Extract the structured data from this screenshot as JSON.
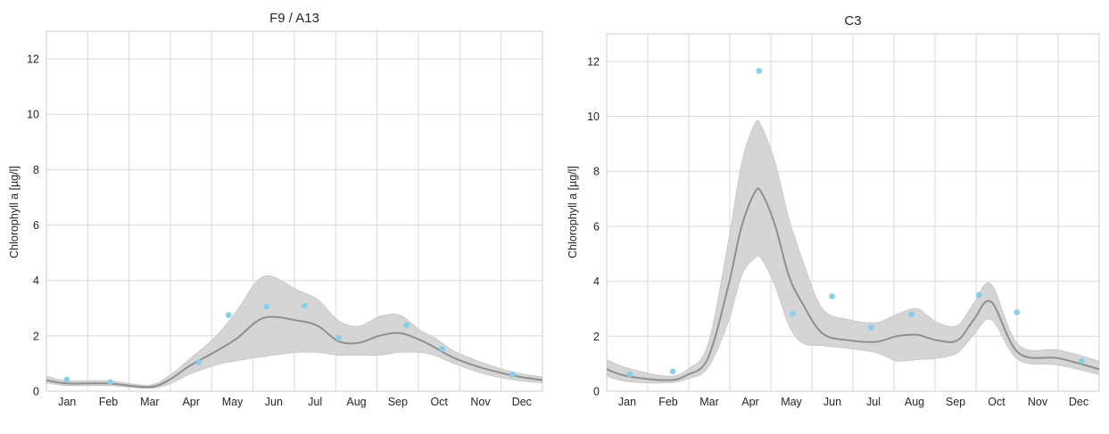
{
  "colors": {
    "grid": "#d9d9d9",
    "frame": "#cccccc",
    "band": "#d3d3d3",
    "line": "#8f8f8f",
    "points": "#87ceeb"
  },
  "chart_data": [
    {
      "type": "line",
      "title": "F9 / A13",
      "xlabel": "",
      "ylabel": "Chlorophyll a [µg/l]",
      "ylim": [
        0,
        13
      ],
      "xlim": [
        0,
        365
      ],
      "yticks": [
        0,
        2,
        4,
        6,
        8,
        10,
        12
      ],
      "categories": [
        "Jan",
        "Feb",
        "Mar",
        "Apr",
        "May",
        "Jun",
        "Jul",
        "Aug",
        "Sep",
        "Oct",
        "Nov",
        "Dec"
      ],
      "grid": true,
      "series": [
        {
          "kind": "smooth",
          "x": [
            0,
            15,
            45,
            75,
            90,
            105,
            125,
            140,
            160,
            185,
            200,
            215,
            230,
            245,
            260,
            275,
            285,
            300,
            320,
            345,
            365
          ],
          "y": [
            0.4,
            0.28,
            0.28,
            0.15,
            0.4,
            0.9,
            1.45,
            1.9,
            2.65,
            2.55,
            2.35,
            1.8,
            1.75,
            2.0,
            2.1,
            1.85,
            1.6,
            1.2,
            0.85,
            0.55,
            0.4
          ],
          "lower": [
            0.3,
            0.2,
            0.2,
            0.1,
            0.25,
            0.6,
            0.95,
            1.1,
            1.25,
            1.4,
            1.4,
            1.3,
            1.3,
            1.3,
            1.4,
            1.4,
            1.3,
            1.0,
            0.65,
            0.4,
            0.3
          ],
          "upper": [
            0.55,
            0.38,
            0.38,
            0.22,
            0.55,
            1.15,
            2.0,
            2.9,
            4.15,
            3.65,
            3.3,
            2.55,
            2.35,
            2.7,
            2.75,
            2.2,
            1.95,
            1.45,
            1.05,
            0.68,
            0.52
          ]
        },
        {
          "kind": "points",
          "x": [
            15,
            47,
            112,
            134,
            162,
            190,
            215,
            265,
            291,
            343
          ],
          "y": [
            0.42,
            0.33,
            1.05,
            2.75,
            3.05,
            3.08,
            1.92,
            2.38,
            1.53,
            0.6
          ]
        }
      ]
    },
    {
      "type": "line",
      "title": "C3",
      "xlabel": "",
      "ylabel": "Chlorophyll a [µg/l]",
      "ylim": [
        0,
        13
      ],
      "xlim": [
        0,
        365
      ],
      "yticks": [
        0,
        2,
        4,
        6,
        8,
        10,
        12
      ],
      "categories": [
        "Jan",
        "Feb",
        "Mar",
        "Apr",
        "May",
        "Jun",
        "Jul",
        "Aug",
        "Sep",
        "Oct",
        "Nov",
        "Dec"
      ],
      "grid": true,
      "series": [
        {
          "kind": "smooth",
          "x": [
            0,
            15,
            45,
            60,
            75,
            90,
            100,
            110,
            115,
            125,
            135,
            145,
            160,
            180,
            200,
            215,
            230,
            245,
            260,
            272,
            285,
            305,
            335,
            365
          ],
          "y": [
            0.8,
            0.55,
            0.4,
            0.6,
            1.2,
            3.8,
            6.0,
            7.25,
            7.2,
            6.0,
            4.2,
            3.2,
            2.1,
            1.85,
            1.8,
            2.0,
            2.05,
            1.85,
            1.85,
            2.6,
            3.25,
            1.4,
            1.2,
            0.8
          ],
          "lower": [
            0.55,
            0.35,
            0.3,
            0.45,
            0.85,
            2.5,
            4.2,
            4.85,
            4.8,
            3.8,
            2.4,
            1.75,
            1.65,
            1.55,
            1.4,
            1.1,
            1.15,
            1.2,
            1.4,
            2.05,
            2.6,
            1.15,
            0.95,
            0.6
          ],
          "upper": [
            1.15,
            0.85,
            0.55,
            0.8,
            1.7,
            5.4,
            8.3,
            9.75,
            9.6,
            8.3,
            6.3,
            4.8,
            3.0,
            2.6,
            2.5,
            2.8,
            3.0,
            2.5,
            2.4,
            3.2,
            3.9,
            1.7,
            1.5,
            1.1
          ]
        },
        {
          "kind": "points",
          "x": [
            17,
            49,
            113,
            138,
            167,
            196,
            226,
            276,
            304,
            352
          ],
          "y": [
            0.62,
            0.72,
            11.65,
            2.82,
            3.45,
            2.32,
            2.8,
            3.5,
            2.87,
            1.1
          ]
        }
      ]
    }
  ]
}
